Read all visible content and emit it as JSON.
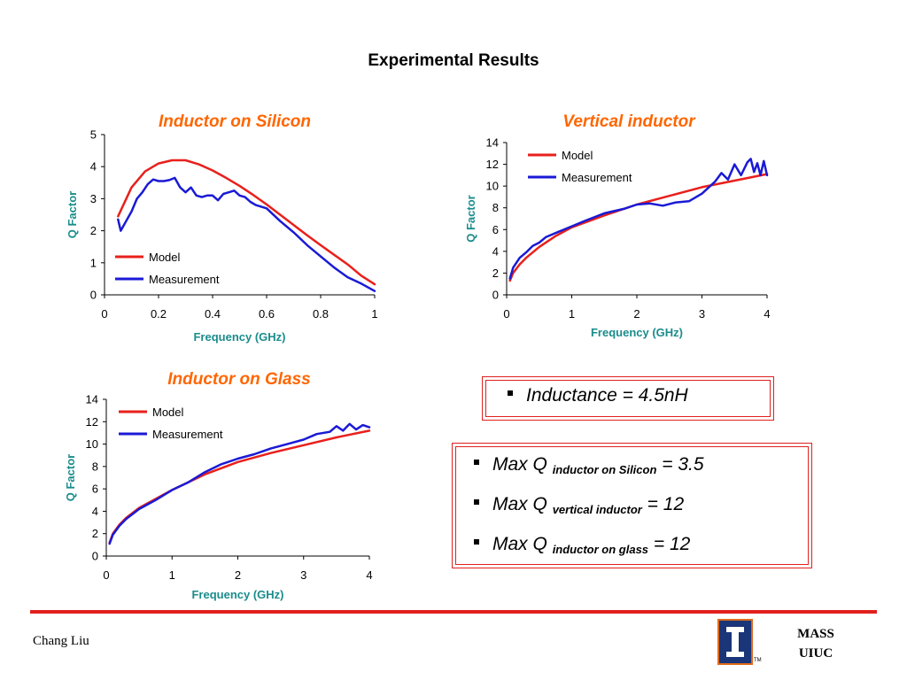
{
  "slide": {
    "title": "Experimental Results",
    "author": "Chang Liu",
    "org_line1": "MASS",
    "org_line2": "UIUC",
    "logo_tm": "TM"
  },
  "colors": {
    "model": "#e8201c",
    "measurement": "#1a1ad6",
    "axis_label": "#1a8c8c",
    "chart_title": "#ff6600",
    "box_border": "#e0201e"
  },
  "info": {
    "inductance": "Inductance = 4.5nH",
    "maxq": [
      {
        "prefix": "Max Q",
        "sub": "inductor on Silicon",
        "suffix": "= 3.5"
      },
      {
        "prefix": "Max Q",
        "sub": "vertical inductor",
        "suffix": "= 12"
      },
      {
        "prefix": "Max Q",
        "sub": "inductor on glass",
        "suffix": "= 12"
      }
    ]
  },
  "chart_data": [
    {
      "type": "line",
      "title": "Inductor on Silicon",
      "xlabel": "Frequency (GHz)",
      "ylabel": "Q Factor",
      "xlim": [
        0,
        1
      ],
      "ylim": [
        0,
        5
      ],
      "xticks": [
        "0",
        "0.2",
        "0.4",
        "0.6",
        "0.8",
        "1"
      ],
      "yticks": [
        "0",
        "1",
        "2",
        "3",
        "4",
        "5"
      ],
      "legend_position": "bottom-left",
      "series": [
        {
          "name": "Model",
          "color": "#e8201c",
          "x": [
            0.05,
            0.1,
            0.15,
            0.2,
            0.25,
            0.3,
            0.35,
            0.4,
            0.45,
            0.5,
            0.55,
            0.6,
            0.65,
            0.7,
            0.75,
            0.8,
            0.85,
            0.9,
            0.95,
            1.0
          ],
          "y": [
            2.45,
            3.35,
            3.85,
            4.1,
            4.2,
            4.2,
            4.07,
            3.88,
            3.65,
            3.4,
            3.12,
            2.82,
            2.5,
            2.18,
            1.86,
            1.55,
            1.25,
            0.95,
            0.6,
            0.33
          ]
        },
        {
          "name": "Measurement",
          "color": "#1a1ad6",
          "x": [
            0.05,
            0.06,
            0.08,
            0.1,
            0.12,
            0.14,
            0.16,
            0.18,
            0.2,
            0.22,
            0.24,
            0.26,
            0.28,
            0.3,
            0.32,
            0.34,
            0.36,
            0.38,
            0.4,
            0.42,
            0.44,
            0.46,
            0.48,
            0.5,
            0.52,
            0.54,
            0.56,
            0.58,
            0.6,
            0.65,
            0.7,
            0.75,
            0.8,
            0.85,
            0.9,
            0.95,
            1.0
          ],
          "y": [
            2.35,
            2.0,
            2.3,
            2.6,
            3.0,
            3.2,
            3.45,
            3.6,
            3.55,
            3.55,
            3.58,
            3.65,
            3.35,
            3.2,
            3.35,
            3.1,
            3.05,
            3.1,
            3.1,
            2.95,
            3.15,
            3.2,
            3.25,
            3.1,
            3.05,
            2.9,
            2.8,
            2.75,
            2.7,
            2.3,
            1.95,
            1.55,
            1.2,
            0.85,
            0.55,
            0.35,
            0.12
          ]
        }
      ]
    },
    {
      "type": "line",
      "title": "Vertical inductor",
      "xlabel": "Frequency (GHz)",
      "ylabel": "Q Factor",
      "xlim": [
        0,
        4
      ],
      "ylim": [
        0,
        14
      ],
      "xticks": [
        "0",
        "1",
        "2",
        "3",
        "4"
      ],
      "yticks": [
        "0",
        "2",
        "4",
        "6",
        "8",
        "10",
        "12",
        "14"
      ],
      "legend_position": "top-left",
      "series": [
        {
          "name": "Model",
          "color": "#e8201c",
          "x": [
            0.05,
            0.1,
            0.2,
            0.3,
            0.5,
            0.75,
            1.0,
            1.5,
            2.0,
            2.5,
            3.0,
            3.5,
            4.0
          ],
          "y": [
            1.3,
            2.0,
            2.8,
            3.4,
            4.4,
            5.4,
            6.2,
            7.3,
            8.3,
            9.1,
            9.9,
            10.5,
            11.1
          ]
        },
        {
          "name": "Measurement",
          "color": "#1a1ad6",
          "x": [
            0.05,
            0.1,
            0.2,
            0.3,
            0.4,
            0.5,
            0.6,
            0.8,
            1.0,
            1.2,
            1.5,
            1.8,
            2.0,
            2.2,
            2.4,
            2.6,
            2.8,
            3.0,
            3.2,
            3.3,
            3.4,
            3.5,
            3.6,
            3.7,
            3.75,
            3.8,
            3.85,
            3.9,
            3.95,
            4.0
          ],
          "y": [
            1.5,
            2.5,
            3.4,
            3.9,
            4.5,
            4.8,
            5.3,
            5.8,
            6.3,
            6.8,
            7.5,
            7.9,
            8.3,
            8.4,
            8.2,
            8.5,
            8.6,
            9.3,
            10.4,
            11.2,
            10.6,
            12.0,
            11.0,
            12.2,
            12.5,
            11.3,
            12.1,
            11.0,
            12.3,
            11.0
          ]
        }
      ]
    },
    {
      "type": "line",
      "title": "Inductor on Glass",
      "xlabel": "Frequency (GHz)",
      "ylabel": "Q Factor",
      "xlim": [
        0,
        4
      ],
      "ylim": [
        0,
        14
      ],
      "xticks": [
        "0",
        "1",
        "2",
        "3",
        "4"
      ],
      "yticks": [
        "0",
        "2",
        "4",
        "6",
        "8",
        "10",
        "12",
        "14"
      ],
      "legend_position": "top-left",
      "series": [
        {
          "name": "Model",
          "color": "#e8201c",
          "x": [
            0.05,
            0.1,
            0.2,
            0.3,
            0.5,
            0.75,
            1.0,
            1.5,
            2.0,
            2.5,
            3.0,
            3.5,
            4.0
          ],
          "y": [
            1.2,
            2.0,
            2.8,
            3.4,
            4.3,
            5.1,
            5.9,
            7.3,
            8.4,
            9.2,
            9.9,
            10.6,
            11.2
          ]
        },
        {
          "name": "Measurement",
          "color": "#1a1ad6",
          "x": [
            0.05,
            0.1,
            0.2,
            0.3,
            0.5,
            0.75,
            1.0,
            1.25,
            1.5,
            1.75,
            2.0,
            2.25,
            2.5,
            2.75,
            3.0,
            3.2,
            3.4,
            3.5,
            3.6,
            3.7,
            3.8,
            3.9,
            4.0
          ],
          "y": [
            1.1,
            1.9,
            2.7,
            3.3,
            4.2,
            5.0,
            5.9,
            6.6,
            7.5,
            8.2,
            8.7,
            9.1,
            9.6,
            10.0,
            10.4,
            10.9,
            11.1,
            11.6,
            11.2,
            11.8,
            11.3,
            11.7,
            11.5
          ]
        }
      ]
    }
  ]
}
